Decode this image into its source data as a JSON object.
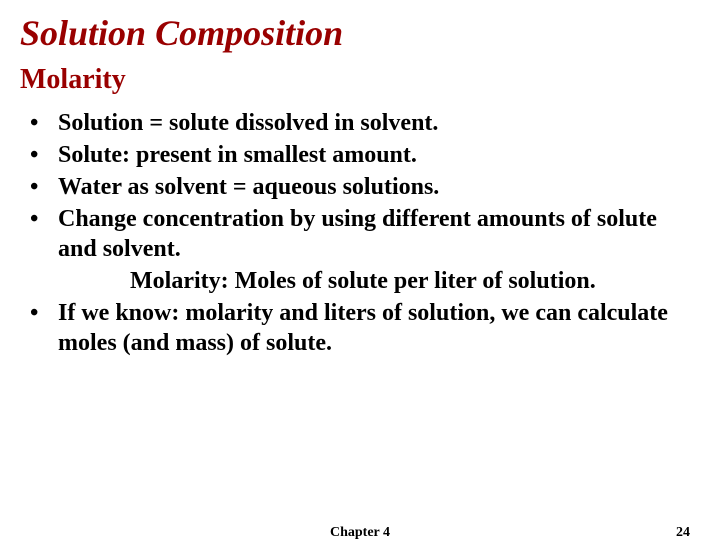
{
  "title": "Solution Composition",
  "subtitle": "Molarity",
  "bullets": [
    "Solution = solute dissolved in solvent.",
    "Solute: present in smallest amount.",
    "Water as solvent = aqueous solutions.",
    "Change concentration by using different amounts of solute and solvent."
  ],
  "definition": "Molarity: Moles of solute per liter of solution.",
  "lastBullet": "If we know: molarity and liters of solution, we can calculate moles (and mass) of solute.",
  "footer": {
    "chapter": "Chapter 4",
    "page": "24"
  },
  "colors": {
    "heading": "#990000",
    "text": "#000000",
    "background": "#ffffff"
  }
}
